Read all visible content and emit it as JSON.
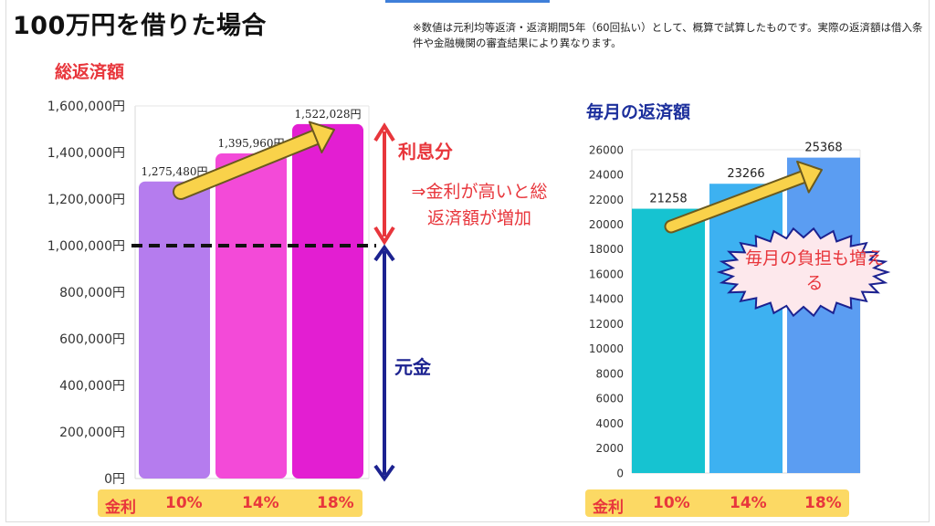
{
  "title": "100万円を借りた場合",
  "note": "※数値は元利均等返済・返済期間5年（60回払い）として、概算で試算したものです。実際の返済額は借入条件や金融機関の審査結果により異なります。",
  "rate_label": "金利",
  "chart_data": [
    {
      "type": "bar",
      "title": "総返済額",
      "categories": [
        "10%",
        "14%",
        "18%"
      ],
      "values": [
        1275480,
        1395960,
        1522028
      ],
      "data_labels": [
        "1,275,480円",
        "1,395,960円",
        "1,522,028円"
      ],
      "ylim": [
        0,
        1600000
      ],
      "yticks": [
        "0円",
        "200,000円",
        "400,000円",
        "600,000円",
        "800,000円",
        "1,000,000円",
        "1,200,000円",
        "1,400,000円",
        "1,600,000円"
      ],
      "reference_line": 1000000,
      "colors": [
        "#b57cee",
        "#f34ad8",
        "#e31ed2"
      ],
      "annotations": {
        "interest_label": "利息分",
        "interest_note": "⇒金利が高いと総返済額が増加",
        "principal_label": "元金"
      }
    },
    {
      "type": "bar",
      "title": "毎月の返済額",
      "categories": [
        "10%",
        "14%",
        "18%"
      ],
      "values": [
        21258,
        23266,
        25368
      ],
      "data_labels": [
        "21258",
        "23266",
        "25368"
      ],
      "ylim": [
        0,
        26000
      ],
      "yticks": [
        "0",
        "2000",
        "4000",
        "6000",
        "8000",
        "10000",
        "12000",
        "14000",
        "16000",
        "18000",
        "20000",
        "22000",
        "24000",
        "26000"
      ],
      "colors": [
        "#16c3d1",
        "#3db1f1",
        "#5b9df2"
      ],
      "annotations": {
        "burden_note": "毎月の負担も増える"
      }
    }
  ],
  "colors": {
    "accent_red": "#e8363c",
    "accent_navy": "#1c2290",
    "arrow_yellow": "#f9d24a",
    "rate_bar": "#fcd964"
  }
}
